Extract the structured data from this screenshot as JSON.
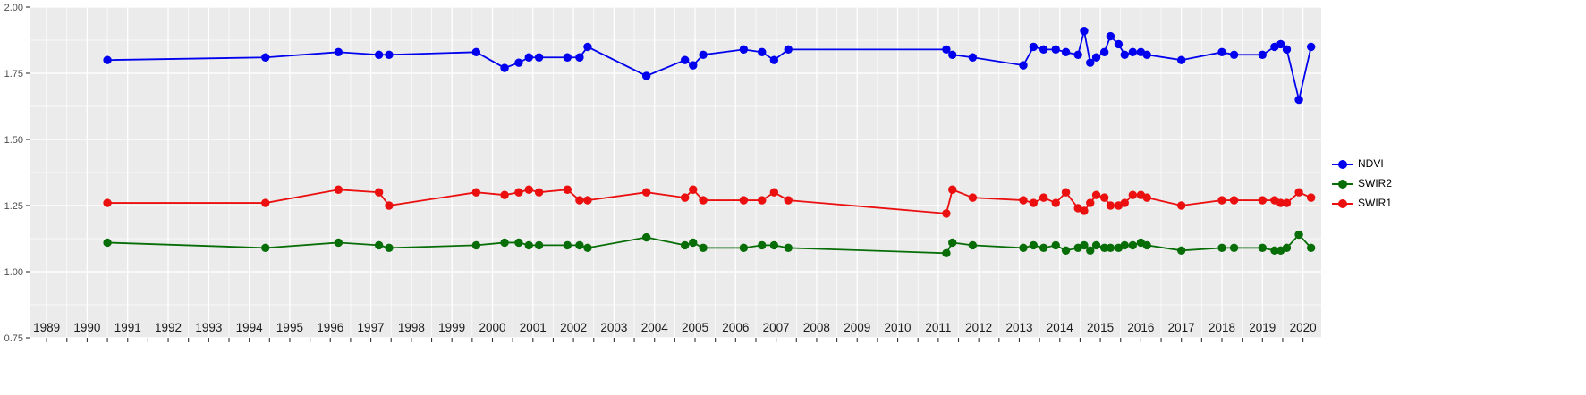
{
  "chart_data": {
    "type": "line",
    "title": "",
    "xlabel": "",
    "ylabel": "",
    "xlim": [
      1988.6,
      2020.45
    ],
    "ylim": [
      0.75,
      2.0
    ],
    "x_ticks": [
      1989,
      1990,
      1991,
      1992,
      1993,
      1994,
      1995,
      1996,
      1997,
      1998,
      1999,
      2000,
      2001,
      2002,
      2003,
      2004,
      2005,
      2006,
      2007,
      2008,
      2009,
      2010,
      2011,
      2012,
      2013,
      2014,
      2015,
      2016,
      2017,
      2018,
      2019,
      2020
    ],
    "y_ticks": [
      0.75,
      1.0,
      1.25,
      1.5,
      1.75,
      2.0
    ],
    "y_tick_labels": [
      "0.75",
      "1.00",
      "1.25",
      "1.50",
      "1.75",
      "2.00"
    ],
    "grid": "major+minor",
    "legend_position": "right",
    "colors": {
      "panel_bg": "#EBEBEB",
      "grid": "#FFFFFF",
      "tick": "#333333",
      "axis_text": "#4D4D4D",
      "year_text": "#1A1A1A"
    },
    "x": [
      1990.5,
      1994.4,
      1996.2,
      1997.2,
      1997.45,
      1999.6,
      2000.3,
      2000.65,
      2000.9,
      2001.15,
      2001.85,
      2002.15,
      2002.35,
      2003.8,
      2004.75,
      2004.95,
      2005.2,
      2006.2,
      2006.65,
      2006.95,
      2007.3,
      2011.2,
      2011.35,
      2011.85,
      2013.1,
      2013.35,
      2013.6,
      2013.9,
      2014.15,
      2014.45,
      2014.6,
      2014.75,
      2014.9,
      2015.1,
      2015.25,
      2015.45,
      2015.6,
      2015.8,
      2016.0,
      2016.15,
      2017.0,
      2018.0,
      2018.3,
      2019.0,
      2019.3,
      2019.45,
      2019.6,
      2019.9,
      2020.2
    ],
    "series": [
      {
        "name": "NDVI",
        "color": "#0000EE",
        "values": [
          1.8,
          1.81,
          1.83,
          1.82,
          1.82,
          1.83,
          1.77,
          1.79,
          1.81,
          1.81,
          1.81,
          1.81,
          1.85,
          1.74,
          1.8,
          1.78,
          1.82,
          1.84,
          1.83,
          1.8,
          1.84,
          1.84,
          1.82,
          1.81,
          1.78,
          1.85,
          1.84,
          1.84,
          1.83,
          1.82,
          1.91,
          1.79,
          1.81,
          1.83,
          1.89,
          1.86,
          1.82,
          1.83,
          1.83,
          1.82,
          1.8,
          1.83,
          1.82,
          1.82,
          1.85,
          1.86,
          1.84,
          1.65,
          1.85
        ]
      },
      {
        "name": "SWIR2",
        "color": "#076D07",
        "values": [
          1.11,
          1.09,
          1.11,
          1.1,
          1.09,
          1.1,
          1.11,
          1.11,
          1.1,
          1.1,
          1.1,
          1.1,
          1.09,
          1.13,
          1.1,
          1.11,
          1.09,
          1.09,
          1.1,
          1.1,
          1.09,
          1.07,
          1.11,
          1.1,
          1.09,
          1.1,
          1.09,
          1.1,
          1.08,
          1.09,
          1.1,
          1.08,
          1.1,
          1.09,
          1.09,
          1.09,
          1.1,
          1.1,
          1.11,
          1.1,
          1.08,
          1.09,
          1.09,
          1.09,
          1.08,
          1.08,
          1.09,
          1.14,
          1.09
        ]
      },
      {
        "name": "SWIR1",
        "color": "#EB0F0F",
        "values": [
          1.26,
          1.26,
          1.31,
          1.3,
          1.25,
          1.3,
          1.29,
          1.3,
          1.31,
          1.3,
          1.31,
          1.27,
          1.27,
          1.3,
          1.28,
          1.31,
          1.27,
          1.27,
          1.27,
          1.3,
          1.27,
          1.22,
          1.31,
          1.28,
          1.27,
          1.26,
          1.28,
          1.26,
          1.3,
          1.24,
          1.23,
          1.26,
          1.29,
          1.28,
          1.25,
          1.25,
          1.26,
          1.29,
          1.29,
          1.28,
          1.25,
          1.27,
          1.27,
          1.27,
          1.27,
          1.26,
          1.26,
          1.3,
          1.28
        ]
      }
    ]
  }
}
